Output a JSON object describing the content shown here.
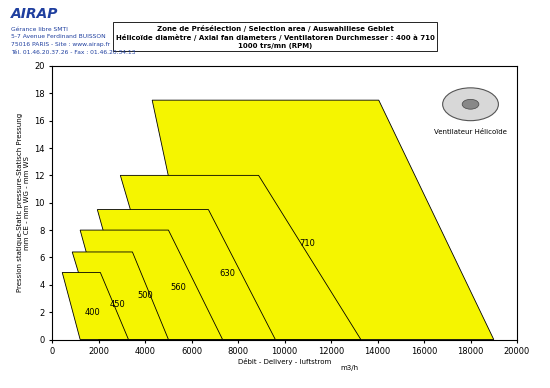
{
  "chart_data": {
    "type": "zones",
    "title": "Zone de Présélection / Selection area / Auswahlliese Gebiet\nHélicoïde diamètre / Axial fan diameters / Ventilatoren Durchmesser : 400 à 710\n1000 trs/mn (RPM)",
    "x_label": "Débit - Delivery - luftstrom",
    "y_label": "Pression statique-Static pressure-Statisch Pressung\nmm CE - mm WG - mm WS",
    "header": [
      "AIRAP",
      "Gérance libre SMTI",
      "5-7 Avenue Ferdinand BUISSON",
      "75016 PARIS - Site : www.airap.fr",
      "Tél. 01.46.20.37.26 - Fax : 01.46.20.34.13"
    ],
    "annotations": [
      "m3/h",
      "Ventilateur Hélicoïde"
    ],
    "color": "#f5f500",
    "series": [
      {
        "name": "710",
        "points": [
          [
            4300,
            17.5
          ],
          [
            14050,
            17.5
          ],
          [
            19000,
            0
          ],
          [
            6500,
            0
          ]
        ]
      },
      {
        "name": "630",
        "points": [
          [
            2930,
            12
          ],
          [
            8880,
            12
          ],
          [
            13280,
            0
          ],
          [
            5000,
            0
          ]
        ]
      },
      {
        "name": "560",
        "points": [
          [
            1940,
            9.5
          ],
          [
            6720,
            9.5
          ],
          [
            9600,
            0
          ],
          [
            3500,
            0
          ]
        ]
      },
      {
        "name": "500",
        "points": [
          [
            1200,
            8
          ],
          [
            5000,
            8
          ],
          [
            7330,
            0
          ],
          [
            2500,
            0
          ]
        ]
      },
      {
        "name": "450",
        "points": [
          [
            860,
            6.4
          ],
          [
            3450,
            6.4
          ],
          [
            5000,
            0
          ],
          [
            2000,
            0
          ]
        ]
      },
      {
        "name": "400",
        "points": [
          [
            430,
            4.9
          ],
          [
            2070,
            4.9
          ],
          [
            3280,
            0
          ],
          [
            1200,
            0
          ]
        ]
      }
    ],
    "xlim": [
      0,
      20000
    ],
    "xticks": [
      0,
      2000,
      4000,
      6000,
      8000,
      10000,
      12000,
      14000,
      16000,
      18000,
      20000
    ],
    "ylim": [
      0,
      20
    ],
    "yticks": [
      0,
      2,
      4,
      6,
      8,
      10,
      12,
      14,
      16,
      18,
      20
    ],
    "grid": false
  }
}
